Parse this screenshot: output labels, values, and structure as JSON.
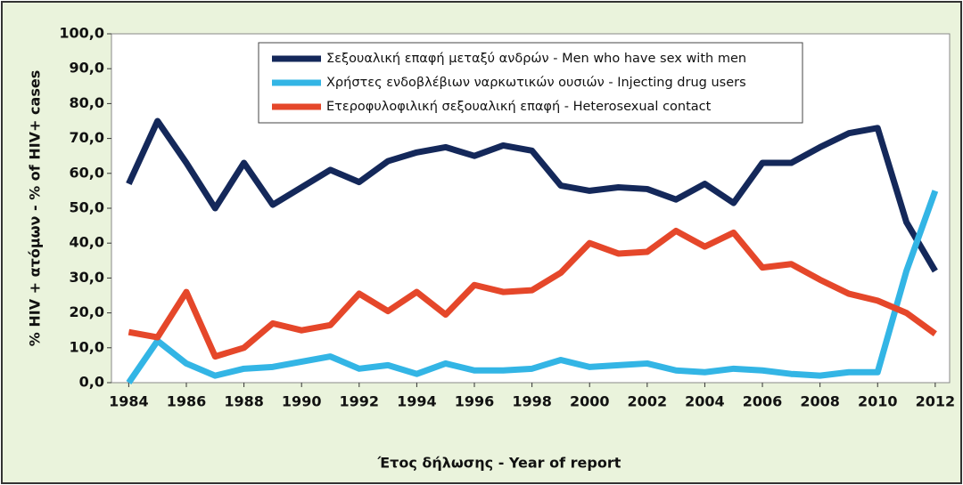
{
  "chart_data": {
    "type": "line",
    "ylabel": "% HIV + ατόμων  -  % of HIV+ cases",
    "xlabel": "Έτος δήλωσης - Year of report",
    "x": [
      1984,
      1985,
      1986,
      1987,
      1988,
      1989,
      1990,
      1991,
      1992,
      1993,
      1994,
      1995,
      1996,
      1997,
      1998,
      1999,
      2000,
      2001,
      2002,
      2003,
      2004,
      2005,
      2006,
      2007,
      2008,
      2009,
      2010,
      2011,
      2012
    ],
    "series": [
      {
        "name": "Σεξουαλική επαφή μεταξύ ανδρών - Men who have sex with men",
        "color": "#14285a",
        "values": [
          57,
          75,
          63,
          50,
          63,
          51,
          56,
          61,
          57.5,
          63.5,
          66,
          67.5,
          65,
          68,
          66.5,
          56.5,
          55,
          56,
          55.5,
          52.5,
          57,
          51.5,
          63,
          63,
          67.5,
          71.5,
          73,
          46,
          32
        ]
      },
      {
        "name": "Χρήστες ενδοβλέβιων ναρκωτικών ουσιών - Injecting drug users",
        "color": "#33b5e5",
        "values": [
          0,
          12,
          5.5,
          2,
          4,
          4.5,
          6,
          7.5,
          4,
          5,
          2.5,
          5.5,
          3.5,
          3.5,
          4,
          6.5,
          4.5,
          5,
          5.5,
          3.5,
          3,
          4,
          3.5,
          2.5,
          2,
          3,
          3,
          32,
          55
        ]
      },
      {
        "name": "Ετεροφυλοφιλική σεξουαλική επαφή - Heterosexual contact",
        "color": "#e5472a",
        "values": [
          14.5,
          13,
          26,
          7.5,
          10,
          17,
          15,
          16.5,
          25.5,
          20.5,
          26,
          19.5,
          28,
          26,
          26.5,
          31.5,
          40,
          37,
          37.5,
          43.5,
          39,
          43,
          33,
          34,
          29.5,
          25.5,
          23.5,
          20,
          14
        ]
      }
    ],
    "xlim": [
      1983.4,
      2012.5
    ],
    "xticks": [
      1984,
      1986,
      1988,
      1990,
      1992,
      1994,
      1996,
      1998,
      2000,
      2002,
      2004,
      2006,
      2008,
      2010,
      2012
    ],
    "ylim": [
      0,
      100
    ],
    "yticks": [
      {
        "value": 0,
        "label": "0,0"
      },
      {
        "value": 10,
        "label": "10,0"
      },
      {
        "value": 20,
        "label": "20,0"
      },
      {
        "value": 30,
        "label": "30,0"
      },
      {
        "value": 40,
        "label": "40,0"
      },
      {
        "value": 50,
        "label": "50,0"
      },
      {
        "value": 60,
        "label": "60,0"
      },
      {
        "value": 70,
        "label": "70,0"
      },
      {
        "value": 80,
        "label": "80,0"
      },
      {
        "value": 90,
        "label": "90,0"
      },
      {
        "value": 100,
        "label": "100,0"
      }
    ],
    "legend": "top"
  }
}
